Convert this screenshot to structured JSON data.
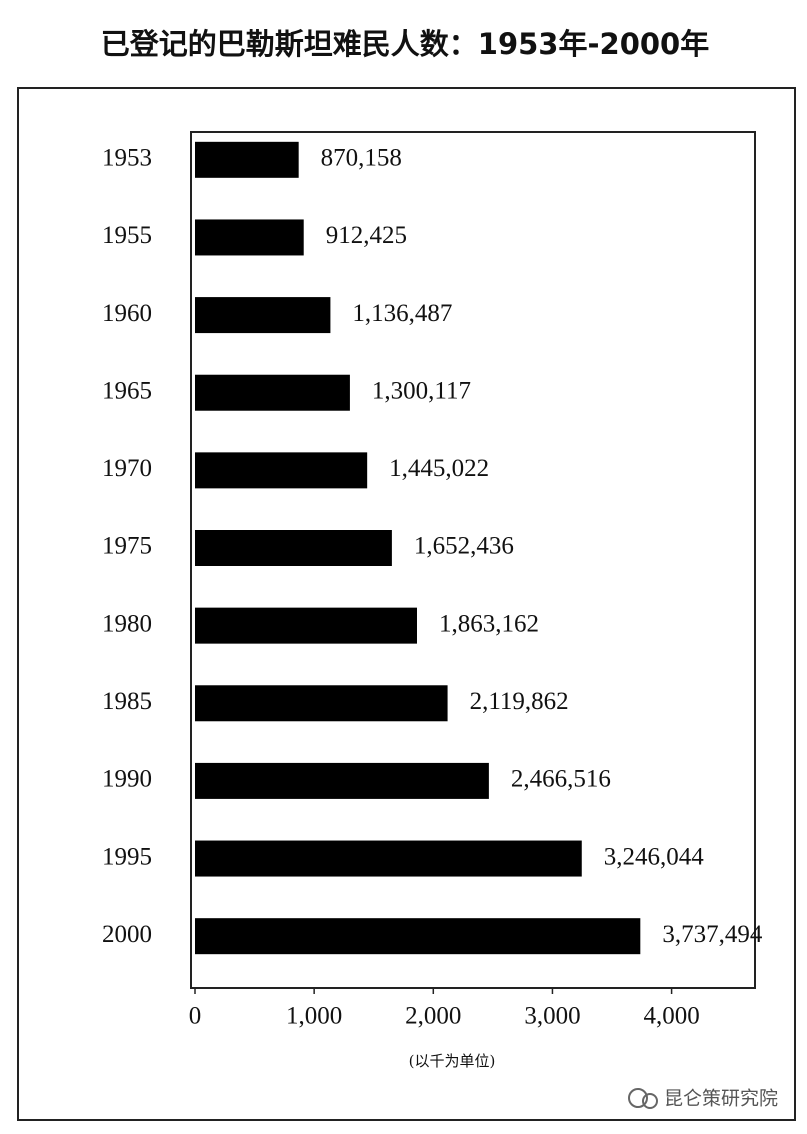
{
  "chart_data": {
    "type": "bar",
    "orientation": "horizontal",
    "title": "已登记的巴勒斯坦难民人数：1953年-2000年",
    "categories": [
      "1953",
      "1955",
      "1960",
      "1965",
      "1970",
      "1975",
      "1980",
      "1985",
      "1990",
      "1995",
      "2000"
    ],
    "values": [
      870.158,
      912.425,
      1136.487,
      1300.117,
      1445.022,
      1652.436,
      1863.162,
      2119.862,
      2466.516,
      3246.044,
      3737.494
    ],
    "value_labels": [
      "870,158",
      "912,425",
      "1,136,487",
      "1,300,117",
      "1,445,022",
      "1,652,436",
      "1,863,162",
      "2,119,862",
      "2,466,516",
      "3,246,044",
      "3,737,494"
    ],
    "color": "#000000",
    "xlim": [
      0,
      4700
    ],
    "xticks": [
      0,
      {
        "value": 1000,
        "label": "1,000"
      },
      {
        "value": 2000,
        "label": "2,000"
      },
      {
        "value": 3000,
        "label": "3,000"
      },
      {
        "value": 4000,
        "label": "4,000"
      }
    ],
    "grid": false,
    "unit_note": "(以千为单位)"
  },
  "watermark": "昆仑策研究院"
}
